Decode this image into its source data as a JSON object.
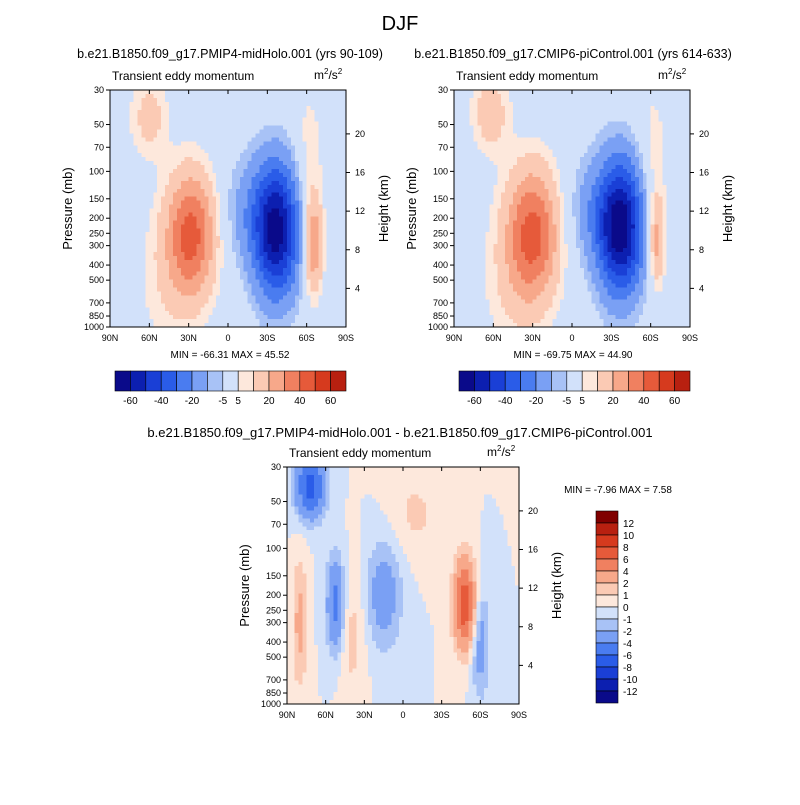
{
  "page_title": "DJF",
  "chart_data": [
    {
      "type": "heatmap",
      "title": "b.e21.B1850.f09_g17.PMIP4-midHolo.001 (yrs 90-109)",
      "subtitle_left": "Transient eddy momentum",
      "unit_base": "m",
      "unit_exp1": "2",
      "unit_mid": "/s",
      "unit_exp2": "2",
      "ylabel": "Pressure (mb)",
      "y2label": "Height (km)",
      "x_ticks": [
        "90N",
        "60N",
        "30N",
        "0",
        "30S",
        "60S",
        "90S"
      ],
      "x_values": [
        90,
        60,
        30,
        0,
        -30,
        -60,
        -90
      ],
      "y_ticks": [
        "30",
        "50",
        "70",
        "100",
        "150",
        "200",
        "250",
        "300",
        "400",
        "500",
        "700",
        "850",
        "1000"
      ],
      "y_values": [
        30,
        50,
        70,
        100,
        150,
        200,
        250,
        300,
        400,
        500,
        700,
        850,
        1000
      ],
      "y2_ticks": [
        "20",
        "16",
        "12",
        "8",
        "4"
      ],
      "y2_values": [
        20,
        16,
        12,
        8,
        4
      ],
      "ylim": [
        1000,
        30
      ],
      "xlim": [
        90,
        -90
      ],
      "stats": "MIN = -66.31  MAX =  45.52",
      "features": [
        {
          "lat": 28,
          "p": 250,
          "value": 42,
          "dlat": 13,
          "dlogp": 0.28
        },
        {
          "lat": 60,
          "p": 45,
          "value": 14,
          "dlat": 10,
          "dlogp": 0.18
        },
        {
          "lat": 45,
          "p": 500,
          "value": 8,
          "dlat": 18,
          "dlogp": 0.35
        },
        {
          "lat": -37,
          "p": 240,
          "value": -64,
          "dlat": 12,
          "dlogp": 0.3
        },
        {
          "lat": -15,
          "p": 180,
          "value": -12,
          "dlat": 14,
          "dlogp": 0.25
        },
        {
          "lat": -65,
          "p": 300,
          "value": 30,
          "dlat": 5,
          "dlogp": 0.22
        },
        {
          "lat": -62,
          "p": 80,
          "value": 8,
          "dlat": 8,
          "dlogp": 0.35
        }
      ]
    },
    {
      "type": "heatmap",
      "title": "b.e21.B1850.f09_g17.CMIP6-piControl.001 (yrs 614-633)",
      "subtitle_left": "Transient eddy momentum",
      "unit_base": "m",
      "unit_exp1": "2",
      "unit_mid": "/s",
      "unit_exp2": "2",
      "ylabel": "Pressure (mb)",
      "y2label": "Height (km)",
      "x_ticks": [
        "90N",
        "60N",
        "30N",
        "0",
        "30S",
        "60S",
        "90S"
      ],
      "x_values": [
        90,
        60,
        30,
        0,
        -30,
        -60,
        -90
      ],
      "y_ticks": [
        "30",
        "50",
        "70",
        "100",
        "150",
        "200",
        "250",
        "300",
        "400",
        "500",
        "700",
        "850",
        "1000"
      ],
      "y_values": [
        30,
        50,
        70,
        100,
        150,
        200,
        250,
        300,
        400,
        500,
        700,
        850,
        1000
      ],
      "y2_ticks": [
        "20",
        "16",
        "12",
        "8",
        "4"
      ],
      "y2_values": [
        20,
        16,
        12,
        8,
        4
      ],
      "ylim": [
        1000,
        30
      ],
      "xlim": [
        90,
        -90
      ],
      "stats": "MIN = -69.75  MAX =  44.90",
      "features": [
        {
          "lat": 30,
          "p": 250,
          "value": 42,
          "dlat": 14,
          "dlogp": 0.3
        },
        {
          "lat": 62,
          "p": 42,
          "value": 16,
          "dlat": 10,
          "dlogp": 0.18
        },
        {
          "lat": 45,
          "p": 500,
          "value": 8,
          "dlat": 18,
          "dlogp": 0.35
        },
        {
          "lat": -37,
          "p": 230,
          "value": -68,
          "dlat": 12,
          "dlogp": 0.3
        },
        {
          "lat": -15,
          "p": 180,
          "value": -12,
          "dlat": 14,
          "dlogp": 0.25
        },
        {
          "lat": -65,
          "p": 280,
          "value": 25,
          "dlat": 4,
          "dlogp": 0.2
        },
        {
          "lat": -62,
          "p": 80,
          "value": 8,
          "dlat": 8,
          "dlogp": 0.35
        }
      ]
    },
    {
      "type": "heatmap",
      "title": "b.e21.B1850.f09_g17.PMIP4-midHolo.001 - b.e21.B1850.f09_g17.CMIP6-piControl.001",
      "subtitle_left": "Transient eddy momentum",
      "unit_base": "m",
      "unit_exp1": "2",
      "unit_mid": "/s",
      "unit_exp2": "2",
      "ylabel": "Pressure (mb)",
      "y2label": "Height (km)",
      "x_ticks": [
        "90N",
        "60N",
        "30N",
        "0",
        "30S",
        "60S",
        "90S"
      ],
      "x_values": [
        90,
        60,
        30,
        0,
        -30,
        -60,
        -90
      ],
      "y_ticks": [
        "30",
        "50",
        "70",
        "100",
        "150",
        "200",
        "250",
        "300",
        "400",
        "500",
        "700",
        "850",
        "1000"
      ],
      "y_values": [
        30,
        50,
        70,
        100,
        150,
        200,
        250,
        300,
        400,
        500,
        700,
        850,
        1000
      ],
      "y2_ticks": [
        "20",
        "16",
        "12",
        "8",
        "4"
      ],
      "y2_values": [
        20,
        16,
        12,
        8,
        4
      ],
      "ylim": [
        1000,
        30
      ],
      "xlim": [
        90,
        -90
      ],
      "stats": "MIN = -7.96  MAX =   7.58",
      "features": [
        {
          "lat": 72,
          "p": 40,
          "value": -7,
          "dlat": 8,
          "dlogp": 0.14
        },
        {
          "lat": 52,
          "p": 230,
          "value": -5,
          "dlat": 5,
          "dlogp": 0.22
        },
        {
          "lat": 15,
          "p": 200,
          "value": -3,
          "dlat": 10,
          "dlogp": 0.25
        },
        {
          "lat": 80,
          "p": 300,
          "value": 2.5,
          "dlat": 4,
          "dlogp": 0.3
        },
        {
          "lat": -48,
          "p": 230,
          "value": 7.5,
          "dlat": 6,
          "dlogp": 0.2
        },
        {
          "lat": -60,
          "p": 400,
          "value": -3,
          "dlat": 5,
          "dlogp": 0.25
        },
        {
          "lat": 40,
          "p": 350,
          "value": 1.5,
          "dlat": 8,
          "dlogp": 0.3
        },
        {
          "lat": -10,
          "p": 60,
          "value": 1.2,
          "dlat": 15,
          "dlogp": 0.2
        }
      ]
    }
  ],
  "colorbars": {
    "top_left": {
      "labels": [
        "-60",
        "-40",
        "-20",
        "-5",
        "5",
        "20",
        "40",
        "60"
      ],
      "levels": [
        -60,
        -50,
        -40,
        -30,
        -20,
        -10,
        -5,
        5,
        10,
        20,
        30,
        40,
        50,
        60
      ],
      "colors": [
        "#0a0a8a",
        "#0c1fb0",
        "#1a3fd6",
        "#2a5ce8",
        "#4a7cf0",
        "#7aa0f4",
        "#a8c2f6",
        "#d2e1fa",
        "#fde8dc",
        "#fbcab4",
        "#f7a88a",
        "#f08060",
        "#e65a3a",
        "#d63a1e",
        "#b82010"
      ]
    },
    "top_right": {
      "labels": [
        "-60",
        "-40",
        "-20",
        "-5",
        "5",
        "20",
        "40",
        "60"
      ],
      "levels": [
        -60,
        -50,
        -40,
        -30,
        -20,
        -10,
        -5,
        5,
        10,
        20,
        30,
        40,
        50,
        60
      ],
      "colors": [
        "#0a0a8a",
        "#0c1fb0",
        "#1a3fd6",
        "#2a5ce8",
        "#4a7cf0",
        "#7aa0f4",
        "#a8c2f6",
        "#d2e1fa",
        "#fde8dc",
        "#fbcab4",
        "#f7a88a",
        "#f08060",
        "#e65a3a",
        "#d63a1e",
        "#b82010"
      ]
    },
    "diff": {
      "labels": [
        "12",
        "10",
        "8",
        "6",
        "4",
        "2",
        "1",
        "0",
        "-1",
        "-2",
        "-4",
        "-6",
        "-8",
        "-10",
        "-12"
      ],
      "levels": [
        -12,
        -10,
        -8,
        -6,
        -4,
        -2,
        -1,
        0,
        1,
        2,
        4,
        6,
        8,
        10,
        12
      ],
      "colors": [
        "#0a0a8a",
        "#0c1fb0",
        "#1a3fd6",
        "#2a5ce8",
        "#4a7cf0",
        "#7aa0f4",
        "#a8c2f6",
        "#d2e1fa",
        "#fde8dc",
        "#fbcab4",
        "#f7a88a",
        "#f08060",
        "#e65a3a",
        "#d63a1e",
        "#b82010",
        "#800000"
      ]
    }
  },
  "colors": {
    "background_field": "#d2e1fa",
    "frame": "#000000",
    "topo_mask": "#ffffff"
  }
}
